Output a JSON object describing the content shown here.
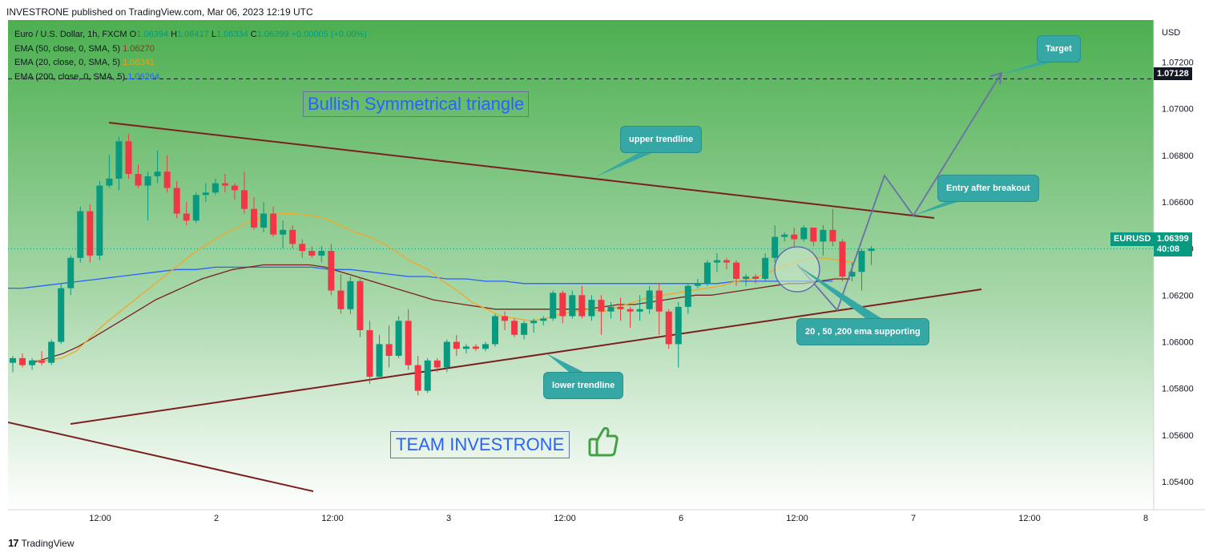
{
  "header": {
    "text": "INVESTRONE published on TradingView.com, Mar 06, 2023 12:19 UTC"
  },
  "legend": {
    "line1_prefix": "Euro / U.S. Dollar, 1h, FXCM",
    "o_label": "O",
    "o_value": "1.06394",
    "h_label": "H",
    "h_value": "1.06417",
    "l_label": "L",
    "l_value": "1.06334",
    "c_label": "C",
    "c_value": "1.06399",
    "change": "+0.00005 (+0.00%)",
    "ema50_label": "EMA (50, close, 0, SMA, 5)",
    "ema50_value": "1.06270",
    "ema20_label": "EMA (20, close, 0, SMA, 5)",
    "ema20_value": "1.06341",
    "ema200_label": "EMA (200, close, 0, SMA, 5)",
    "ema200_value": "1.06264"
  },
  "annotations": {
    "title": "Bullish Symmetrical triangle",
    "team": "TEAM INVESTRONE",
    "upper_trendline": "upper trendline",
    "lower_trendline": "lower trendline",
    "entry": "Entry after breakout",
    "target": "Target",
    "ema_support": "20 , 50 ,200 ema supporting"
  },
  "price_axis": {
    "currency": "USD",
    "target_price": "1.07128",
    "symbol": "EURUSD",
    "current_price": "1.06399",
    "countdown": "40:08"
  },
  "footer": {
    "logo": "17",
    "brand": "TradingView"
  },
  "colors": {
    "up": "#089981",
    "down": "#f23645",
    "ema20": "#f5a623",
    "ema50": "#7b1f1f",
    "ema200": "#2962ff",
    "trendline": "#7b1f1f",
    "projection": "#6a6fa8"
  },
  "chart_data": {
    "type": "candlestick",
    "symbol": "EURUSD",
    "interval": "1h",
    "x_tick_labels": [
      "12:00",
      "2",
      "12:00",
      "3",
      "12:00",
      "6",
      "12:00",
      "7",
      "12:00",
      "8"
    ],
    "y_tick_labels": [
      "1.07200",
      "1.07000",
      "1.06800",
      "1.06600",
      "1.06400",
      "1.06200",
      "1.06000",
      "1.05800",
      "1.05600",
      "1.05400"
    ],
    "ylim": [
      1.0528,
      1.0738
    ],
    "target_level": 1.07128,
    "current_price": 1.06399,
    "candles": [
      [
        1.0591,
        1.0594,
        1.0587,
        1.0593
      ],
      [
        1.0593,
        1.0595,
        1.0589,
        1.059
      ],
      [
        1.059,
        1.0593,
        1.0588,
        1.0592
      ],
      [
        1.0592,
        1.0596,
        1.059,
        1.0591
      ],
      [
        1.0591,
        1.0601,
        1.059,
        1.06
      ],
      [
        1.06,
        1.0625,
        1.0599,
        1.0623
      ],
      [
        1.0623,
        1.0637,
        1.062,
        1.0636
      ],
      [
        1.0636,
        1.0658,
        1.0634,
        1.0656
      ],
      [
        1.0656,
        1.0659,
        1.0634,
        1.0637
      ],
      [
        1.0637,
        1.0669,
        1.0635,
        1.0667
      ],
      [
        1.0667,
        1.068,
        1.0666,
        1.067
      ],
      [
        1.067,
        1.0688,
        1.0665,
        1.0686
      ],
      [
        1.0686,
        1.0689,
        1.067,
        1.0672
      ],
      [
        1.0672,
        1.0676,
        1.0666,
        1.0667
      ],
      [
        1.0667,
        1.0673,
        1.0652,
        1.0671
      ],
      [
        1.0671,
        1.0682,
        1.0668,
        1.0673
      ],
      [
        1.0673,
        1.068,
        1.0664,
        1.0666
      ],
      [
        1.0666,
        1.0669,
        1.0653,
        1.0655
      ],
      [
        1.0655,
        1.066,
        1.065,
        1.0652
      ],
      [
        1.0652,
        1.0664,
        1.0651,
        1.0663
      ],
      [
        1.0663,
        1.0668,
        1.066,
        1.0664
      ],
      [
        1.0664,
        1.067,
        1.0663,
        1.0668
      ],
      [
        1.0668,
        1.0672,
        1.0664,
        1.0667
      ],
      [
        1.0667,
        1.0668,
        1.0661,
        1.0665
      ],
      [
        1.0665,
        1.0673,
        1.0655,
        1.0657
      ],
      [
        1.0657,
        1.0662,
        1.0648,
        1.0649
      ],
      [
        1.0649,
        1.066,
        1.0647,
        1.0655
      ],
      [
        1.0655,
        1.0658,
        1.0645,
        1.0646
      ],
      [
        1.0646,
        1.0652,
        1.064,
        1.0648
      ],
      [
        1.0648,
        1.065,
        1.064,
        1.0642
      ],
      [
        1.0642,
        1.0644,
        1.0636,
        1.0639
      ],
      [
        1.0639,
        1.0641,
        1.0636,
        1.0637
      ],
      [
        1.0637,
        1.0641,
        1.0634,
        1.0639
      ],
      [
        1.0639,
        1.0642,
        1.062,
        1.0622
      ],
      [
        1.0622,
        1.0629,
        1.0612,
        1.0614
      ],
      [
        1.0614,
        1.0628,
        1.0612,
        1.0626
      ],
      [
        1.0626,
        1.0627,
        1.0602,
        1.0605
      ],
      [
        1.0605,
        1.0609,
        1.0582,
        1.0585
      ],
      [
        1.0585,
        1.0603,
        1.0584,
        1.0599
      ],
      [
        1.0599,
        1.0607,
        1.0589,
        1.0594
      ],
      [
        1.0594,
        1.0611,
        1.0593,
        1.0609
      ],
      [
        1.0609,
        1.0614,
        1.0588,
        1.059
      ],
      [
        1.059,
        1.0594,
        1.0577,
        1.0579
      ],
      [
        1.0579,
        1.0593,
        1.0578,
        1.0592
      ],
      [
        1.0592,
        1.0593,
        1.0587,
        1.0589
      ],
      [
        1.0589,
        1.0601,
        1.0587,
        1.06
      ],
      [
        1.06,
        1.0603,
        1.0594,
        1.0597
      ],
      [
        1.0597,
        1.0599,
        1.0595,
        1.0598
      ],
      [
        1.0598,
        1.0599,
        1.0596,
        1.0597
      ],
      [
        1.0597,
        1.06,
        1.0596,
        1.0599
      ],
      [
        1.0599,
        1.0612,
        1.0598,
        1.0611
      ],
      [
        1.0611,
        1.0613,
        1.0605,
        1.0609
      ],
      [
        1.0609,
        1.061,
        1.0602,
        1.0603
      ],
      [
        1.0603,
        1.0609,
        1.0601,
        1.0608
      ],
      [
        1.0608,
        1.061,
        1.0604,
        1.0609
      ],
      [
        1.0609,
        1.0611,
        1.0607,
        1.061
      ],
      [
        1.061,
        1.0622,
        1.0609,
        1.0621
      ],
      [
        1.0621,
        1.0622,
        1.0608,
        1.0611
      ],
      [
        1.0611,
        1.0622,
        1.061,
        1.062
      ],
      [
        1.062,
        1.0624,
        1.061,
        1.0611
      ],
      [
        1.0611,
        1.062,
        1.0609,
        1.0618
      ],
      [
        1.0618,
        1.062,
        1.0603,
        1.0613
      ],
      [
        1.0613,
        1.0617,
        1.061,
        1.0615
      ],
      [
        1.0615,
        1.0619,
        1.0609,
        1.0614
      ],
      [
        1.0614,
        1.0615,
        1.0606,
        1.0613
      ],
      [
        1.0613,
        1.062,
        1.0609,
        1.0614
      ],
      [
        1.0614,
        1.0624,
        1.0612,
        1.0622
      ],
      [
        1.0622,
        1.0625,
        1.0603,
        1.0613
      ],
      [
        1.0613,
        1.0614,
        1.0597,
        1.0599
      ],
      [
        1.0599,
        1.0617,
        1.0589,
        1.0615
      ],
      [
        1.0615,
        1.0625,
        1.0612,
        1.0624
      ],
      [
        1.0624,
        1.0627,
        1.0623,
        1.0625
      ],
      [
        1.0625,
        1.0635,
        1.0624,
        1.0634
      ],
      [
        1.0634,
        1.0638,
        1.063,
        1.0635
      ],
      [
        1.0635,
        1.0636,
        1.0631,
        1.0634
      ],
      [
        1.0634,
        1.0635,
        1.0624,
        1.0627
      ],
      [
        1.0627,
        1.0629,
        1.0624,
        1.0628
      ],
      [
        1.0628,
        1.0629,
        1.0625,
        1.0627
      ],
      [
        1.0627,
        1.0638,
        1.0626,
        1.0636
      ],
      [
        1.0636,
        1.065,
        1.0634,
        1.0645
      ],
      [
        1.0645,
        1.0647,
        1.0643,
        1.0646
      ],
      [
        1.0646,
        1.0649,
        1.064,
        1.0644
      ],
      [
        1.0644,
        1.065,
        1.0643,
        1.0649
      ],
      [
        1.0649,
        1.0649,
        1.0641,
        1.0643
      ],
      [
        1.0643,
        1.065,
        1.0637,
        1.0648
      ],
      [
        1.0648,
        1.0657,
        1.0641,
        1.0643
      ],
      [
        1.0643,
        1.0644,
        1.0626,
        1.0628
      ],
      [
        1.0628,
        1.0634,
        1.0626,
        1.063
      ],
      [
        1.063,
        1.064,
        1.0622,
        1.0639
      ],
      [
        1.0639,
        1.0641,
        1.0633,
        1.064
      ]
    ],
    "ema20": [
      1.0592,
      1.0592,
      1.0593,
      1.0596,
      1.0602,
      1.0608,
      1.0613,
      1.0618,
      1.0623,
      1.0628,
      1.0633,
      1.0638,
      1.0642,
      1.0646,
      1.0649,
      1.0652,
      1.0654,
      1.0655,
      1.0655,
      1.0654,
      1.0653,
      1.065,
      1.0647,
      1.0645,
      1.0642,
      1.0638,
      1.0634,
      1.0631,
      1.0626,
      1.0622,
      1.0617,
      1.0614,
      1.0611,
      1.061,
      1.0609,
      1.061,
      1.0612,
      1.0613,
      1.0614,
      1.0613,
      1.0615,
      1.0617,
      1.0619,
      1.062,
      1.0621,
      1.0622,
      1.0623,
      1.0624,
      1.0626,
      1.0627,
      1.0629,
      1.0632,
      1.0634,
      1.0636,
      1.0636,
      1.0635,
      1.0634
    ],
    "ema50": [
      1.0591,
      1.0593,
      1.0595,
      1.0598,
      1.0602,
      1.0606,
      1.061,
      1.0614,
      1.0618,
      1.0621,
      1.0624,
      1.0627,
      1.0629,
      1.0631,
      1.0632,
      1.0633,
      1.0633,
      1.0633,
      1.0633,
      1.0632,
      1.063,
      1.0628,
      1.0626,
      1.0624,
      1.0622,
      1.062,
      1.0618,
      1.0617,
      1.0616,
      1.0615,
      1.0614,
      1.0614,
      1.0614,
      1.0614,
      1.0614,
      1.0614,
      1.0614,
      1.0615,
      1.0616,
      1.0616,
      1.0617,
      1.0618,
      1.0619,
      1.062,
      1.062,
      1.0621,
      1.0622,
      1.0623,
      1.0624,
      1.0625,
      1.0625,
      1.0626,
      1.0627,
      1.0627
    ],
    "ema200": [
      1.0623,
      1.0623,
      1.0624,
      1.0625,
      1.0626,
      1.0627,
      1.0628,
      1.0629,
      1.063,
      1.0631,
      1.0631,
      1.0632,
      1.0632,
      1.0632,
      1.0632,
      1.0632,
      1.0632,
      1.0631,
      1.0631,
      1.063,
      1.0629,
      1.0628,
      1.0628,
      1.0627,
      1.0627,
      1.0626,
      1.0626,
      1.0625,
      1.0625,
      1.0625,
      1.0625,
      1.0625,
      1.0625,
      1.0625,
      1.0625,
      1.0625,
      1.0625,
      1.0625,
      1.0626,
      1.0626,
      1.0626,
      1.0626,
      1.0626,
      1.0626
    ]
  }
}
